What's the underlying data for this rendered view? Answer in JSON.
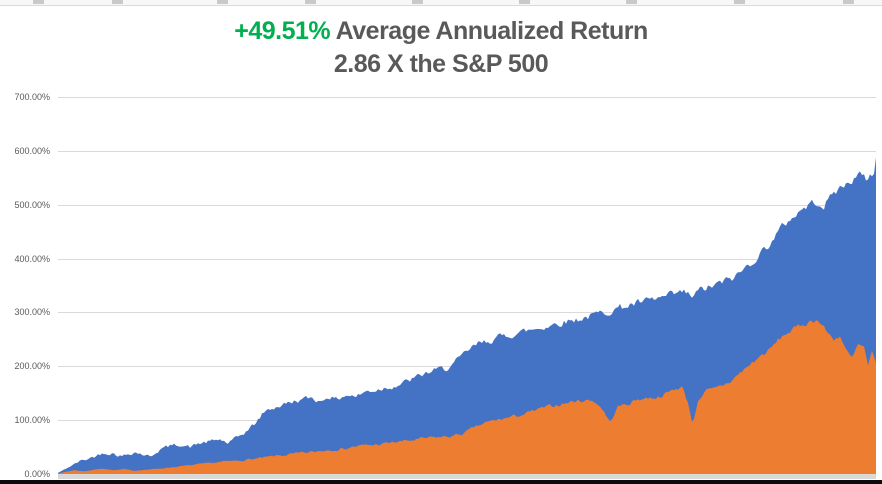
{
  "title": {
    "highlight": "+49.51%",
    "rest": " Average Annualized Return",
    "line2": "2.86 X the S&P 500"
  },
  "colors": {
    "highlight_green": "#00B050",
    "title_gray": "#595959",
    "axis_label": "#595959",
    "gridline": "#D9D9D9",
    "blue_series": "#4472C4",
    "orange_series": "#ED7D31",
    "axis_band": "#D9D9D9",
    "bottom_bar": "#000000"
  },
  "y_axis": {
    "tick_labels": [
      "700.00%",
      "600.00%",
      "500.00%",
      "400.00%",
      "300.00%",
      "200.00%",
      "100.00%",
      "0.00%"
    ]
  },
  "chart_data": {
    "type": "area",
    "title": "+49.51% Average Annualized Return",
    "subtitle": "2.86 X the S&P 500",
    "xlabel": "",
    "ylabel": "",
    "ylim": [
      0,
      700
    ],
    "y_ticks_pct": [
      0,
      100,
      200,
      300,
      400,
      500,
      600,
      700
    ],
    "grid": true,
    "legend": "none",
    "x_axis_labels_visible": false,
    "x_unit": "plot_pixels_0_to_818_time_axis_unlabeled",
    "y_unit": "cumulative_return_percent",
    "series": [
      {
        "name": "blue_area",
        "color": "#4472C4",
        "points": [
          [
            0,
            2
          ],
          [
            8,
            10
          ],
          [
            14,
            16
          ],
          [
            22,
            24
          ],
          [
            30,
            28
          ],
          [
            38,
            34
          ],
          [
            46,
            40
          ],
          [
            56,
            38
          ],
          [
            64,
            33
          ],
          [
            76,
            41
          ],
          [
            86,
            36
          ],
          [
            92,
            32
          ],
          [
            102,
            46
          ],
          [
            112,
            52
          ],
          [
            122,
            55
          ],
          [
            132,
            50
          ],
          [
            142,
            57
          ],
          [
            152,
            60
          ],
          [
            162,
            64
          ],
          [
            170,
            57
          ],
          [
            180,
            68
          ],
          [
            190,
            82
          ],
          [
            198,
            95
          ],
          [
            206,
            115
          ],
          [
            214,
            122
          ],
          [
            224,
            128
          ],
          [
            234,
            134
          ],
          [
            244,
            138
          ],
          [
            254,
            142
          ],
          [
            262,
            134
          ],
          [
            270,
            145
          ],
          [
            278,
            138
          ],
          [
            288,
            147
          ],
          [
            298,
            144
          ],
          [
            308,
            153
          ],
          [
            318,
            156
          ],
          [
            328,
            161
          ],
          [
            338,
            164
          ],
          [
            348,
            171
          ],
          [
            358,
            179
          ],
          [
            368,
            187
          ],
          [
            378,
            193
          ],
          [
            388,
            196
          ],
          [
            396,
            205
          ],
          [
            404,
            218
          ],
          [
            412,
            232
          ],
          [
            420,
            241
          ],
          [
            434,
            250
          ],
          [
            448,
            257
          ],
          [
            462,
            263
          ],
          [
            476,
            269
          ],
          [
            490,
            275
          ],
          [
            504,
            282
          ],
          [
            518,
            287
          ],
          [
            532,
            293
          ],
          [
            546,
            300
          ],
          [
            560,
            308
          ],
          [
            574,
            315
          ],
          [
            588,
            320
          ],
          [
            602,
            326
          ],
          [
            614,
            332
          ],
          [
            626,
            337
          ],
          [
            634,
            329
          ],
          [
            642,
            341
          ],
          [
            654,
            348
          ],
          [
            666,
            357
          ],
          [
            678,
            367
          ],
          [
            690,
            387
          ],
          [
            702,
            409
          ],
          [
            714,
            433
          ],
          [
            724,
            458
          ],
          [
            734,
            477
          ],
          [
            744,
            491
          ],
          [
            752,
            501
          ],
          [
            760,
            506
          ],
          [
            766,
            497
          ],
          [
            774,
            519
          ],
          [
            782,
            531
          ],
          [
            790,
            540
          ],
          [
            796,
            549
          ],
          [
            802,
            556
          ],
          [
            808,
            546
          ],
          [
            812,
            558
          ],
          [
            815,
            548
          ],
          [
            818,
            586
          ]
        ]
      },
      {
        "name": "orange_area",
        "color": "#ED7D31",
        "points": [
          [
            0,
            1
          ],
          [
            8,
            4
          ],
          [
            16,
            7
          ],
          [
            26,
            5
          ],
          [
            36,
            8
          ],
          [
            46,
            10
          ],
          [
            56,
            7
          ],
          [
            66,
            9
          ],
          [
            76,
            6
          ],
          [
            86,
            8
          ],
          [
            96,
            9
          ],
          [
            106,
            11
          ],
          [
            116,
            13
          ],
          [
            126,
            15
          ],
          [
            136,
            17
          ],
          [
            146,
            19
          ],
          [
            156,
            21
          ],
          [
            166,
            23
          ],
          [
            176,
            24
          ],
          [
            186,
            26
          ],
          [
            196,
            28
          ],
          [
            206,
            30
          ],
          [
            216,
            33
          ],
          [
            226,
            35
          ],
          [
            236,
            37
          ],
          [
            246,
            39
          ],
          [
            256,
            41
          ],
          [
            266,
            44
          ],
          [
            276,
            46
          ],
          [
            286,
            47
          ],
          [
            296,
            51
          ],
          [
            306,
            53
          ],
          [
            316,
            54
          ],
          [
            326,
            56
          ],
          [
            336,
            59
          ],
          [
            346,
            61
          ],
          [
            356,
            63
          ],
          [
            366,
            66
          ],
          [
            376,
            68
          ],
          [
            386,
            69
          ],
          [
            396,
            71
          ],
          [
            406,
            76
          ],
          [
            416,
            86
          ],
          [
            426,
            94
          ],
          [
            436,
            99
          ],
          [
            446,
            103
          ],
          [
            456,
            107
          ],
          [
            466,
            111
          ],
          [
            476,
            117
          ],
          [
            486,
            123
          ],
          [
            496,
            127
          ],
          [
            506,
            131
          ],
          [
            516,
            135
          ],
          [
            526,
            137
          ],
          [
            536,
            136
          ],
          [
            544,
            122
          ],
          [
            552,
            96
          ],
          [
            560,
            125
          ],
          [
            570,
            130
          ],
          [
            580,
            139
          ],
          [
            590,
            141
          ],
          [
            600,
            143
          ],
          [
            608,
            149
          ],
          [
            616,
            157
          ],
          [
            624,
            162
          ],
          [
            630,
            132
          ],
          [
            635,
            92
          ],
          [
            640,
            138
          ],
          [
            648,
            154
          ],
          [
            656,
            157
          ],
          [
            664,
            164
          ],
          [
            672,
            171
          ],
          [
            680,
            184
          ],
          [
            688,
            197
          ],
          [
            696,
            209
          ],
          [
            704,
            221
          ],
          [
            712,
            231
          ],
          [
            720,
            248
          ],
          [
            728,
            261
          ],
          [
            736,
            269
          ],
          [
            744,
            277
          ],
          [
            752,
            283
          ],
          [
            758,
            288
          ],
          [
            764,
            277
          ],
          [
            770,
            261
          ],
          [
            776,
            251
          ],
          [
            782,
            257
          ],
          [
            788,
            229
          ],
          [
            794,
            214
          ],
          [
            800,
            239
          ],
          [
            806,
            235
          ],
          [
            810,
            199
          ],
          [
            814,
            224
          ],
          [
            818,
            204
          ]
        ]
      }
    ]
  }
}
